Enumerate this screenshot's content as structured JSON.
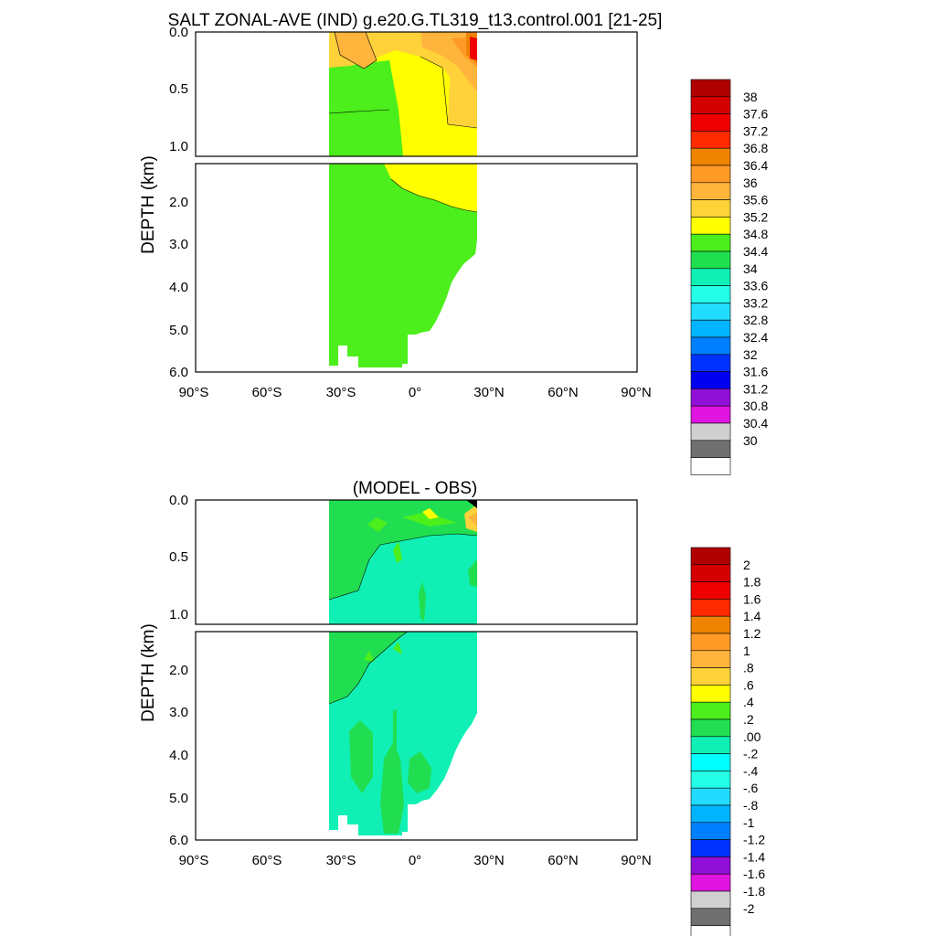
{
  "chart_data": [
    {
      "type": "heatmap",
      "title": "SALT ZONAL-AVE (IND) g.e20.G.TL319_t13.control.001 [21-25]",
      "ylabel": "DEPTH (km)",
      "x_ticks": [
        "90°S",
        "60°S",
        "30°S",
        "0°",
        "30°N",
        "60°N",
        "90°N"
      ],
      "xlim": [
        -90,
        90
      ],
      "upper_ticks": [
        "0.0",
        "0.5",
        "1.0"
      ],
      "lower_ticks": [
        "2.0",
        "3.0",
        "4.0",
        "5.0",
        "6.0"
      ],
      "ylim_upper": [
        0,
        1.1
      ],
      "ylim_lower": [
        1.1,
        6.0
      ],
      "colorbar_labels": [
        "38",
        "37.6",
        "37.2",
        "36.8",
        "36.4",
        "36",
        "35.6",
        "35.2",
        "34.8",
        "34.4",
        "34",
        "33.6",
        "33.2",
        "32.8",
        "32.4",
        "32",
        "31.6",
        "31.2",
        "30.8",
        "30.4",
        "30"
      ],
      "colorbar_colors": [
        "#b00000",
        "#d40000",
        "#ee0000",
        "#ff2a00",
        "#ee8400",
        "#ff9a26",
        "#ffb43c",
        "#ffd23a",
        "#ffff00",
        "#4cee1c",
        "#20de50",
        "#10f0b4",
        "#26ffe8",
        "#22dcff",
        "#00b4ff",
        "#0080ff",
        "#0032ff",
        "#0000ee",
        "#9010d8",
        "#e014e0",
        "#d0d0d0",
        "#707070",
        "#ffffff"
      ],
      "annotations": []
    },
    {
      "type": "heatmap",
      "title": "(MODEL - OBS)",
      "ylabel": "DEPTH (km)",
      "x_ticks": [
        "90°S",
        "60°S",
        "30°S",
        "0°",
        "30°N",
        "60°N",
        "90°N"
      ],
      "xlim": [
        -90,
        90
      ],
      "upper_ticks": [
        "0.0",
        "0.5",
        "1.0"
      ],
      "lower_ticks": [
        "2.0",
        "3.0",
        "4.0",
        "5.0",
        "6.0"
      ],
      "ylim_upper": [
        0,
        1.1
      ],
      "ylim_lower": [
        1.1,
        6.0
      ],
      "colorbar_labels": [
        "2",
        "1.8",
        "1.6",
        "1.4",
        "1.2",
        "1",
        ".8",
        ".6",
        ".4",
        ".2",
        ".00",
        "-.2",
        "-.4",
        "-.6",
        "-.8",
        "-1",
        "-1.2",
        "-1.4",
        "-1.6",
        "-1.8",
        "-2"
      ],
      "colorbar_colors": [
        "#b00000",
        "#d40000",
        "#ee0000",
        "#ff2a00",
        "#ee8400",
        "#ff9a26",
        "#ffb43c",
        "#ffd23a",
        "#ffff00",
        "#4cee1c",
        "#20de50",
        "#10f0b4",
        "#00ffff",
        "#26ffe8",
        "#22dcff",
        "#00b4ff",
        "#0080ff",
        "#0032ff",
        "#9010d8",
        "#e014e0",
        "#d0d0d0",
        "#707070",
        "#ffffff"
      ]
    }
  ]
}
